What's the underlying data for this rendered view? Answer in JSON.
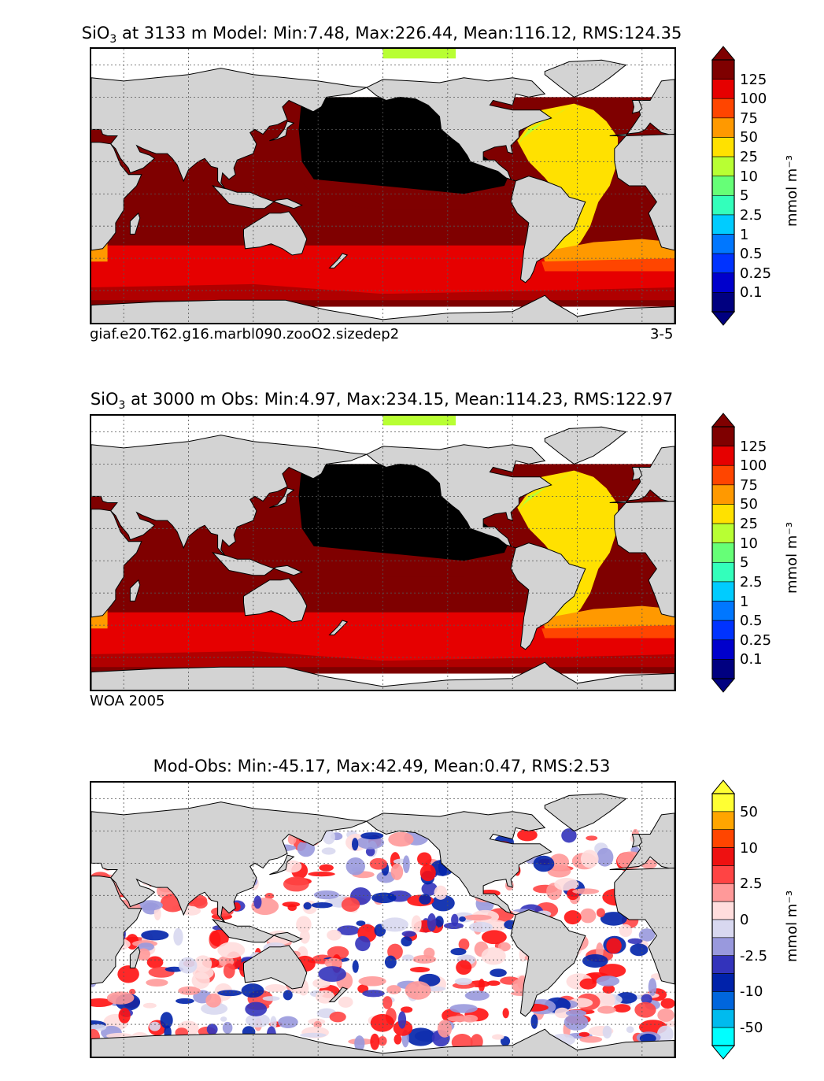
{
  "panels": [
    {
      "title_prefix": "SiO",
      "title_sub": "3",
      "title_rest": " at 3133 m Model: Min:7.48, Max:226.44, Mean:116.12, RMS:124.35",
      "footnote_left": "giaf.e20.T62.g16.marbl090.zooO2.sizedep2",
      "footnote_right": "3-5",
      "colorbar": {
        "unit": "mmol m⁻³",
        "ticks": [
          "125",
          "100",
          "75",
          "50",
          "25",
          "10",
          "5",
          "2.5",
          "1",
          "0.5",
          "0.25",
          "0.1"
        ],
        "colors": [
          "#7f0000",
          "#e60000",
          "#ff4500",
          "#ff9900",
          "#ffe100",
          "#b8ff33",
          "#66ff77",
          "#33ffbb",
          "#00ccff",
          "#0077ff",
          "#0033ff",
          "#0000cc",
          "#000080"
        ]
      }
    },
    {
      "title_prefix": "SiO",
      "title_sub": "3",
      "title_rest": " at 3000 m Obs: Min:4.97, Max:234.15, Mean:114.23, RMS:122.97",
      "footnote_left": "WOA 2005",
      "footnote_right": "",
      "colorbar": {
        "unit": "mmol m⁻³",
        "ticks": [
          "125",
          "100",
          "75",
          "50",
          "25",
          "10",
          "5",
          "2.5",
          "1",
          "0.5",
          "0.25",
          "0.1"
        ],
        "colors": [
          "#7f0000",
          "#e60000",
          "#ff4500",
          "#ff9900",
          "#ffe100",
          "#b8ff33",
          "#66ff77",
          "#33ffbb",
          "#00ccff",
          "#0077ff",
          "#0033ff",
          "#0000cc",
          "#000080"
        ]
      }
    },
    {
      "title_prefix": "",
      "title_sub": "",
      "title_rest": "Mod-Obs: Min:-45.17, Max:42.49, Mean:0.47, RMS:2.53",
      "footnote_left": "",
      "footnote_right": "",
      "colorbar": {
        "unit": "mmol m⁻³",
        "ticks": [
          "50",
          "10",
          "2.5",
          "0",
          "-2.5",
          "-10",
          "-50"
        ],
        "colors": [
          "#ffff33",
          "#ffa500",
          "#ff4500",
          "#ee1111",
          "#ff4444",
          "#ff9999",
          "#ffdddd",
          "#d8d8f0",
          "#9999dd",
          "#3333bb",
          "#0022aa",
          "#0066dd",
          "#00bbee",
          "#00ffff"
        ]
      }
    }
  ],
  "chart_data": {
    "type": "heatmap",
    "description_series": [
      {
        "name": "SiO3 at 3133 m Model",
        "min": 7.48,
        "max": 226.44,
        "mean": 116.12,
        "rms": 124.35
      },
      {
        "name": "SiO3 at 3000 m Obs",
        "min": 4.97,
        "max": 234.15,
        "mean": 114.23,
        "rms": 122.97
      },
      {
        "name": "Mod-Obs",
        "min": -45.17,
        "max": 42.49,
        "mean": 0.47,
        "rms": 2.53
      }
    ],
    "colorbar_levels_abs": [
      0.1,
      0.25,
      0.5,
      1,
      2.5,
      5,
      10,
      25,
      50,
      75,
      100,
      125
    ],
    "colorbar_levels_diff": [
      -50,
      -10,
      -2.5,
      0,
      2.5,
      10,
      50
    ]
  }
}
